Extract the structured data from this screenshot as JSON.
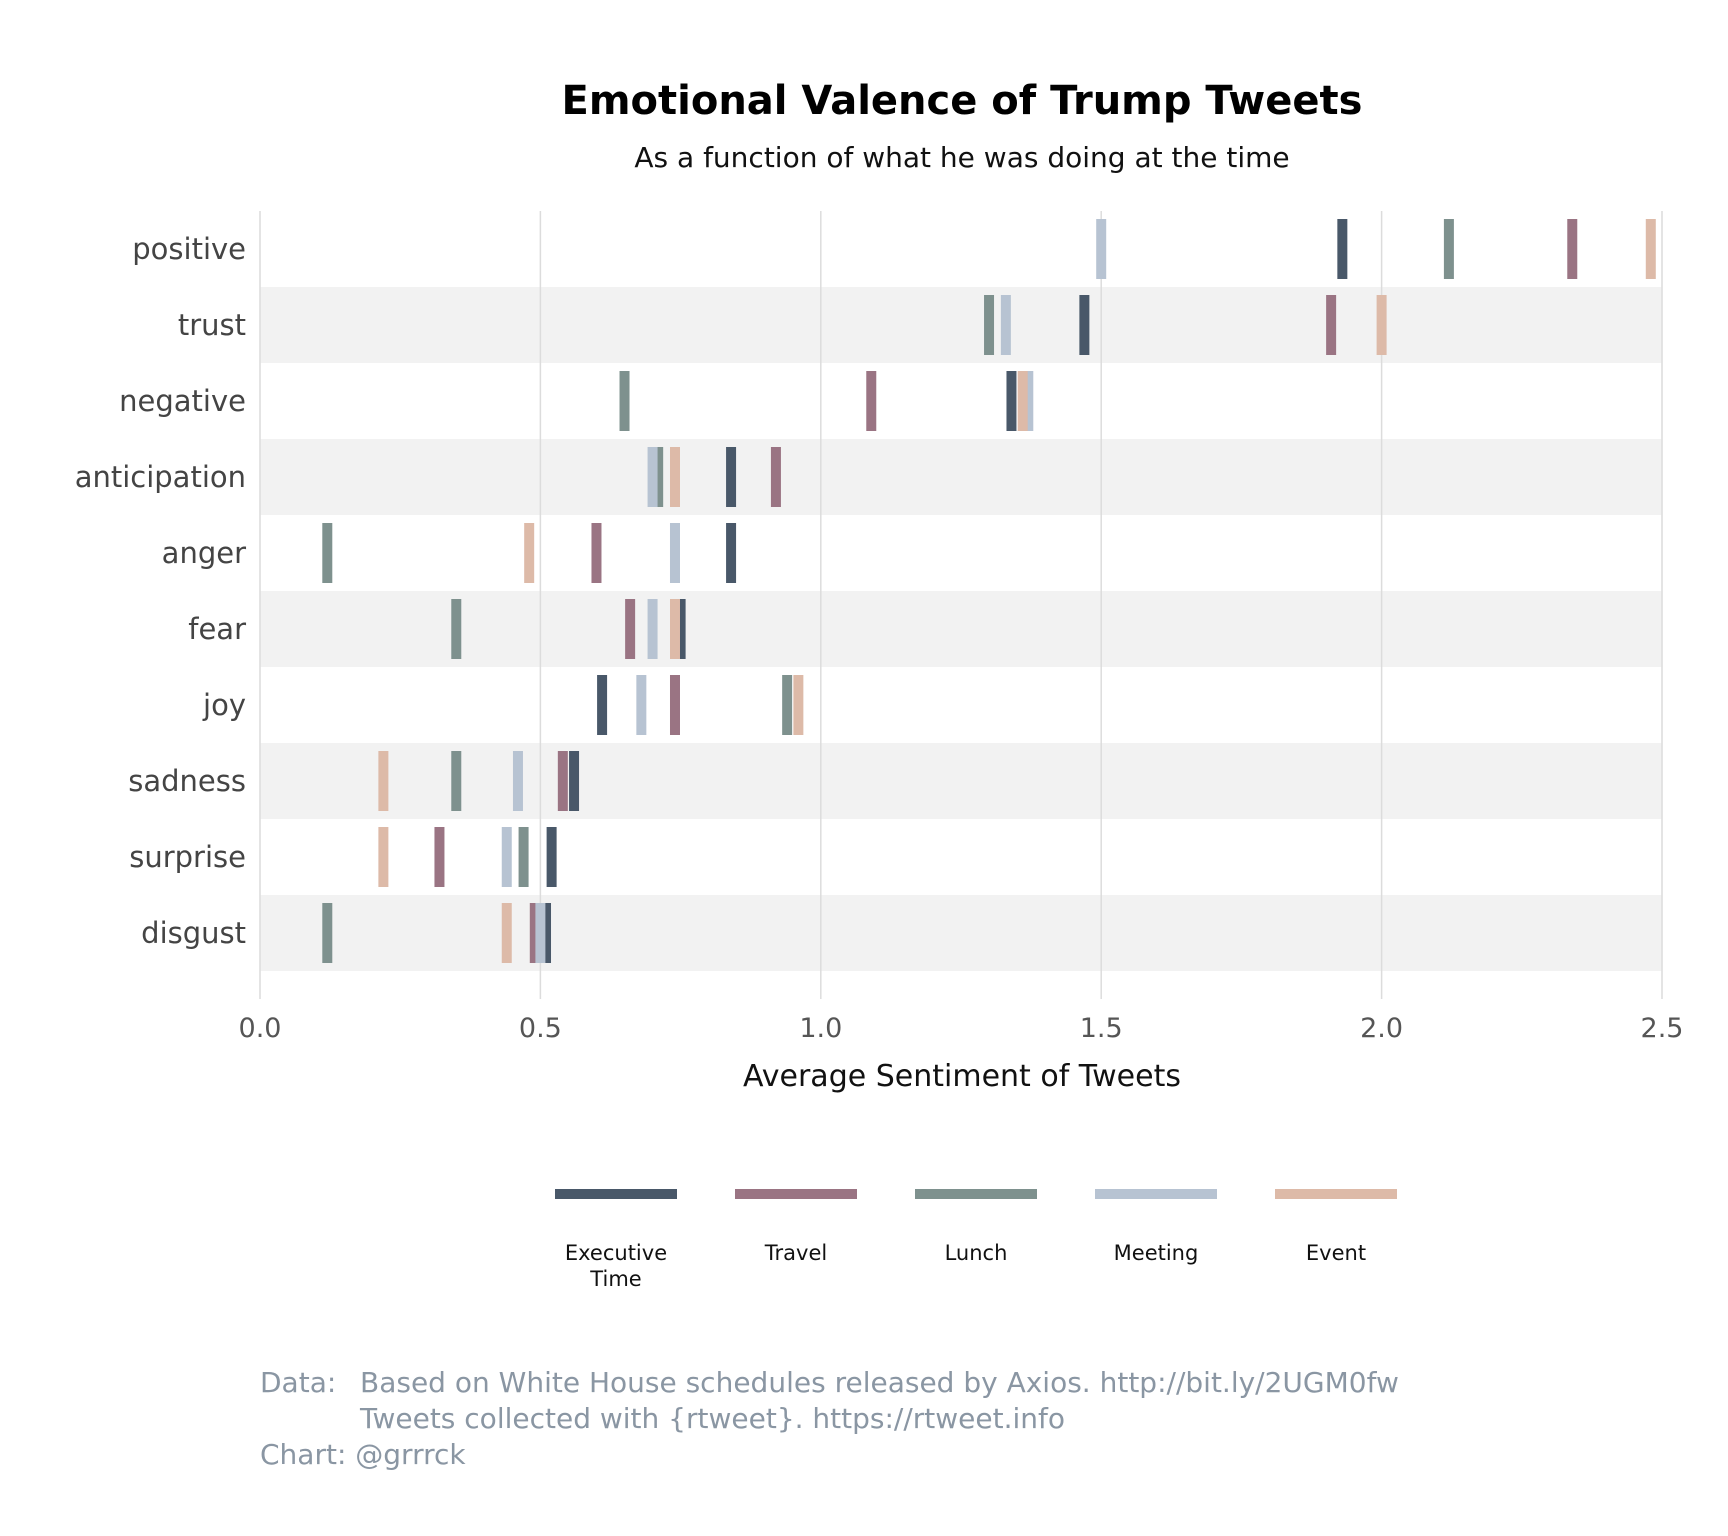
{
  "chart_data": {
    "type": "strip",
    "title": "Emotional Valence of Trump Tweets",
    "subtitle": "As a function of what he was doing at the time",
    "xlabel": "Average Sentiment of Tweets",
    "ylabel": "",
    "xlim": [
      0,
      2.5
    ],
    "xticks": [
      "0.0",
      "0.5",
      "1.0",
      "1.5",
      "2.0",
      "2.5"
    ],
    "grid": true,
    "legend_position": "bottom",
    "categories": [
      "positive",
      "trust",
      "negative",
      "anticipation",
      "anger",
      "fear",
      "joy",
      "sadness",
      "surprise",
      "disgust"
    ],
    "series": [
      {
        "name": "Executive Time",
        "legend_lines": [
          "Executive",
          "Time"
        ],
        "color": "#495869",
        "values": [
          1.93,
          1.47,
          1.34,
          0.84,
          0.84,
          0.75,
          0.61,
          0.56,
          0.52,
          0.51
        ]
      },
      {
        "name": "Travel",
        "legend_lines": [
          "Travel"
        ],
        "color": "#9a7483",
        "values": [
          2.34,
          1.91,
          1.09,
          0.92,
          0.6,
          0.66,
          0.74,
          0.54,
          0.32,
          0.49
        ]
      },
      {
        "name": "Lunch",
        "legend_lines": [
          "Lunch"
        ],
        "color": "#7e918e",
        "values": [
          2.12,
          1.3,
          0.65,
          0.71,
          0.12,
          0.35,
          0.94,
          0.35,
          0.47,
          0.12
        ]
      },
      {
        "name": "Meeting",
        "legend_lines": [
          "Meeting"
        ],
        "color": "#b7c3d2",
        "values": [
          1.5,
          1.33,
          1.37,
          0.7,
          0.74,
          0.7,
          0.68,
          0.46,
          0.44,
          0.5
        ]
      },
      {
        "name": "Event",
        "legend_lines": [
          "Event"
        ],
        "color": "#ddbaa8",
        "values": [
          2.48,
          2.0,
          1.36,
          0.74,
          0.48,
          0.74,
          0.96,
          0.22,
          0.22,
          0.44
        ]
      }
    ]
  },
  "caption": {
    "data_label": "Data:",
    "data_line1": "Based on White House schedules released by Axios. http://bit.ly/2UGM0fw",
    "data_line2": "Tweets collected with {rtweet}. https://rtweet.info",
    "chart_credit": "Chart: @grrrck"
  }
}
